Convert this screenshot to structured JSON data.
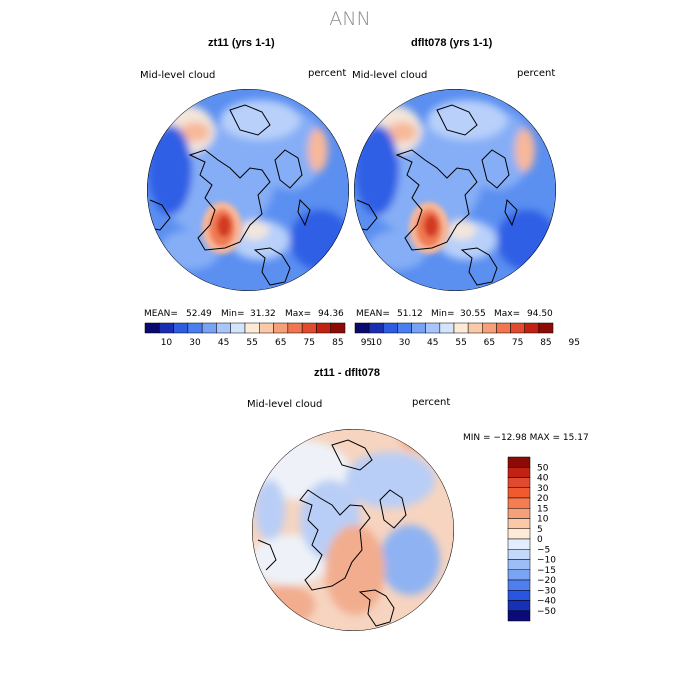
{
  "figure": {
    "title": "ANN"
  },
  "panels": [
    {
      "id": "left",
      "title": "zt11 (yrs 1-1)",
      "variable": "Mid-level cloud",
      "units": "percent",
      "mean_label": "MEAN=",
      "mean_value": "52.49",
      "min_label": "Min=",
      "min_value": "31.32",
      "max_label": "Max=",
      "max_value": "94.36"
    },
    {
      "id": "right",
      "title": "dflt078 (yrs 1-1)",
      "variable": "Mid-level cloud",
      "units": "percent",
      "mean_label": "MEAN=",
      "mean_value": "51.12",
      "min_label": "Min=",
      "min_value": "30.55",
      "max_label": "Max=",
      "max_value": "94.50"
    },
    {
      "id": "diff",
      "title": "zt11 - dflt078",
      "variable": "Mid-level cloud",
      "units": "percent",
      "minmax_text": "MIN = −12.98 MAX =  15.17"
    }
  ],
  "colorbar_top": {
    "labels": [
      "10",
      "30",
      "45",
      "55",
      "65",
      "75",
      "85",
      "95"
    ],
    "colors": [
      "#0a0a6e",
      "#1a2fb0",
      "#2f5be0",
      "#4a7ff0",
      "#78a3f5",
      "#a8c6fb",
      "#d4e4fd",
      "#fdebd8",
      "#fac9a8",
      "#f6a07a",
      "#ef7650",
      "#e04a2e",
      "#c12214",
      "#8c0b05"
    ]
  },
  "colorbar_diff": {
    "labels": [
      "50",
      "40",
      "30",
      "20",
      "15",
      "10",
      "5",
      "0",
      "−5",
      "−10",
      "−15",
      "−20",
      "−30",
      "−40",
      "−50"
    ],
    "colors": [
      "#8c0b05",
      "#c12214",
      "#e04a2e",
      "#f05a2e",
      "#f57d50",
      "#f6a07a",
      "#fac9a8",
      "#fdebd8",
      "#e2eefd",
      "#c3d8fb",
      "#9dbdf7",
      "#7aa3f3",
      "#4f7fee",
      "#2a55e0",
      "#1630b8",
      "#0a0a7a"
    ]
  },
  "map_colors": {
    "ocean_base": "#5b8ff0",
    "mid_blue": "#86aef6",
    "light_blue": "#b8d0fa",
    "dark_blue": "#2e5fe5",
    "pale": "#f3e6dc",
    "salmon": "#f8b89a",
    "orange": "#ef7a52",
    "red": "#d23a22",
    "diff_base": "#f6d4c0",
    "diff_pale": "#eef2f8",
    "diff_blue": "#b9cef6",
    "diff_mblue": "#8fb2f2",
    "diff_salmon": "#f2ad8e"
  }
}
